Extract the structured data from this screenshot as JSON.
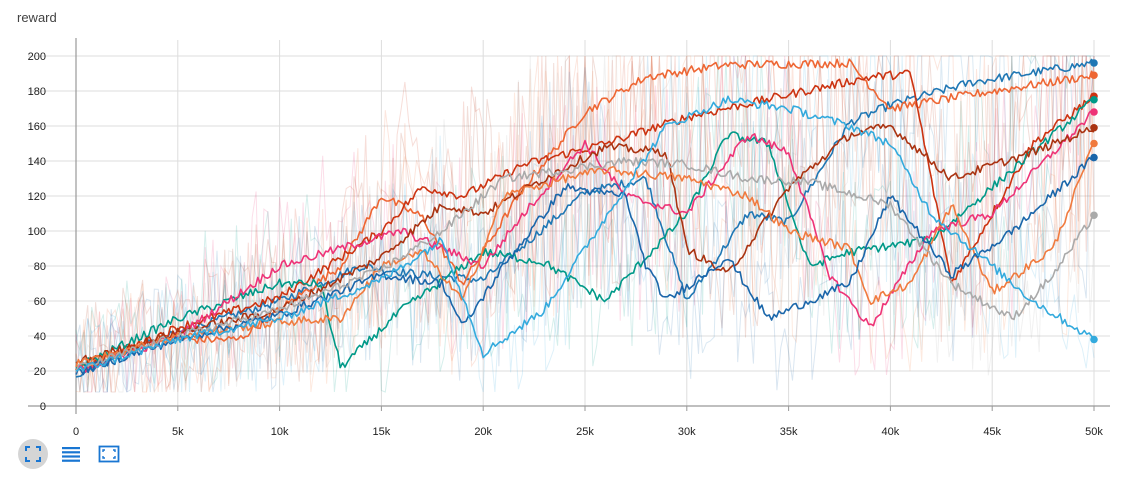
{
  "title": "reward",
  "toolbar": [
    {
      "name": "fit-domain-button",
      "icon": "fit-domain-icon",
      "active": true
    },
    {
      "name": "toggle-log-button",
      "icon": "list-lines-icon",
      "active": false
    },
    {
      "name": "expand-chart-button",
      "icon": "expand-icon",
      "active": false
    }
  ],
  "chart_data": {
    "type": "line",
    "title": "reward",
    "xlabel": "",
    "ylabel": "",
    "xlim": [
      0,
      50000
    ],
    "ylim": [
      0,
      200
    ],
    "grid": true,
    "x_ticks": [
      0,
      5000,
      10000,
      15000,
      20000,
      25000,
      30000,
      35000,
      40000,
      45000,
      50000
    ],
    "x_tick_labels": [
      "0",
      "5k",
      "10k",
      "15k",
      "20k",
      "25k",
      "30k",
      "35k",
      "40k",
      "45k",
      "50k"
    ],
    "y_ticks": [
      0,
      20,
      40,
      60,
      80,
      100,
      120,
      140,
      160,
      180,
      200
    ],
    "y_tick_labels": [
      "0",
      "20",
      "40",
      "60",
      "80",
      "100",
      "120",
      "140",
      "160",
      "180",
      "200"
    ],
    "series": [
      {
        "color": "#1f77b4",
        "points": [
          [
            0,
            18
          ],
          [
            5000,
            42
          ],
          [
            10000,
            60
          ],
          [
            14000,
            80
          ],
          [
            17000,
            75
          ],
          [
            20000,
            72
          ],
          [
            25000,
            122
          ],
          [
            28000,
            130
          ],
          [
            30000,
            60
          ],
          [
            33000,
            110
          ],
          [
            35000,
            105
          ],
          [
            38000,
            162
          ],
          [
            40000,
            172
          ],
          [
            44000,
            185
          ],
          [
            50000,
            196
          ]
        ]
      },
      {
        "color": "#ee6633",
        "points": [
          [
            0,
            22
          ],
          [
            4000,
            38
          ],
          [
            8000,
            38
          ],
          [
            10000,
            55
          ],
          [
            13000,
            80
          ],
          [
            15000,
            120
          ],
          [
            17000,
            108
          ],
          [
            19000,
            70
          ],
          [
            22000,
            125
          ],
          [
            25000,
            168
          ],
          [
            28000,
            188
          ],
          [
            32000,
            195
          ],
          [
            38000,
            196
          ],
          [
            40000,
            170
          ],
          [
            44000,
            178
          ],
          [
            50000,
            189
          ]
        ]
      },
      {
        "color": "#cc3311",
        "points": [
          [
            0,
            20
          ],
          [
            5000,
            45
          ],
          [
            10000,
            62
          ],
          [
            15000,
            100
          ],
          [
            17000,
            125
          ],
          [
            19000,
            120
          ],
          [
            22000,
            138
          ],
          [
            26000,
            150
          ],
          [
            30000,
            165
          ],
          [
            35000,
            178
          ],
          [
            39000,
            188
          ],
          [
            41000,
            190
          ],
          [
            43000,
            70
          ],
          [
            47000,
            150
          ],
          [
            50000,
            177
          ]
        ]
      },
      {
        "color": "#009988",
        "points": [
          [
            0,
            22
          ],
          [
            5000,
            50
          ],
          [
            10000,
            70
          ],
          [
            12000,
            70
          ],
          [
            13000,
            22
          ],
          [
            16000,
            55
          ],
          [
            20000,
            88
          ],
          [
            23000,
            82
          ],
          [
            26000,
            60
          ],
          [
            30000,
            110
          ],
          [
            32000,
            155
          ],
          [
            34000,
            150
          ],
          [
            36000,
            80
          ],
          [
            38000,
            88
          ],
          [
            42000,
            95
          ],
          [
            46000,
            135
          ],
          [
            50000,
            175
          ]
        ]
      },
      {
        "color": "#ee3377",
        "points": [
          [
            0,
            20
          ],
          [
            5000,
            40
          ],
          [
            10000,
            80
          ],
          [
            13000,
            90
          ],
          [
            16000,
            100
          ],
          [
            18000,
            90
          ],
          [
            20000,
            80
          ],
          [
            22000,
            110
          ],
          [
            25000,
            150
          ],
          [
            27000,
            120
          ],
          [
            30000,
            110
          ],
          [
            33000,
            155
          ],
          [
            35000,
            145
          ],
          [
            37000,
            75
          ],
          [
            39000,
            45
          ],
          [
            42000,
            100
          ],
          [
            45000,
            110
          ],
          [
            50000,
            168
          ]
        ]
      },
      {
        "color": "#aa3311",
        "points": [
          [
            0,
            25
          ],
          [
            5000,
            42
          ],
          [
            10000,
            55
          ],
          [
            15000,
            85
          ],
          [
            18000,
            115
          ],
          [
            20000,
            110
          ],
          [
            23000,
            130
          ],
          [
            26000,
            148
          ],
          [
            29000,
            145
          ],
          [
            30000,
            90
          ],
          [
            32000,
            75
          ],
          [
            35000,
            125
          ],
          [
            38000,
            155
          ],
          [
            40000,
            160
          ],
          [
            43000,
            130
          ],
          [
            47000,
            145
          ],
          [
            50000,
            159
          ]
        ]
      },
      {
        "color": "#f07a3e",
        "points": [
          [
            0,
            24
          ],
          [
            5000,
            40
          ],
          [
            10000,
            48
          ],
          [
            13000,
            50
          ],
          [
            15000,
            80
          ],
          [
            17000,
            88
          ],
          [
            19000,
            60
          ],
          [
            21000,
            120
          ],
          [
            24000,
            130
          ],
          [
            26000,
            135
          ],
          [
            30000,
            130
          ],
          [
            33000,
            120
          ],
          [
            35000,
            100
          ],
          [
            38000,
            90
          ],
          [
            39000,
            60
          ],
          [
            41000,
            70
          ],
          [
            43000,
            115
          ],
          [
            45000,
            65
          ],
          [
            48000,
            90
          ],
          [
            50000,
            150
          ]
        ]
      },
      {
        "color": "#1a66aa",
        "points": [
          [
            0,
            19
          ],
          [
            5000,
            38
          ],
          [
            10000,
            52
          ],
          [
            15000,
            75
          ],
          [
            18000,
            70
          ],
          [
            19000,
            45
          ],
          [
            21000,
            80
          ],
          [
            24000,
            125
          ],
          [
            27000,
            120
          ],
          [
            28000,
            80
          ],
          [
            29000,
            60
          ],
          [
            32000,
            85
          ],
          [
            34000,
            50
          ],
          [
            36000,
            60
          ],
          [
            38000,
            70
          ],
          [
            40000,
            120
          ],
          [
            43000,
            75
          ],
          [
            46000,
            100
          ],
          [
            50000,
            142
          ]
        ]
      },
      {
        "color": "#aaaaaa",
        "points": [
          [
            0,
            21
          ],
          [
            5000,
            40
          ],
          [
            10000,
            55
          ],
          [
            15000,
            78
          ],
          [
            18000,
            100
          ],
          [
            21000,
            130
          ],
          [
            24000,
            135
          ],
          [
            27000,
            140
          ],
          [
            30000,
            138
          ],
          [
            33000,
            130
          ],
          [
            36000,
            128
          ],
          [
            40000,
            115
          ],
          [
            43000,
            70
          ],
          [
            46000,
            50
          ],
          [
            48000,
            75
          ],
          [
            50000,
            109
          ]
        ]
      },
      {
        "color": "#33aadd",
        "points": [
          [
            0,
            20
          ],
          [
            5000,
            38
          ],
          [
            10000,
            50
          ],
          [
            15000,
            72
          ],
          [
            18000,
            95
          ],
          [
            20000,
            30
          ],
          [
            23000,
            55
          ],
          [
            25000,
            90
          ],
          [
            29000,
            160
          ],
          [
            32000,
            175
          ],
          [
            35000,
            170
          ],
          [
            38000,
            160
          ],
          [
            40000,
            150
          ],
          [
            42000,
            110
          ],
          [
            44000,
            90
          ],
          [
            47000,
            60
          ],
          [
            50000,
            38
          ]
        ]
      }
    ]
  }
}
